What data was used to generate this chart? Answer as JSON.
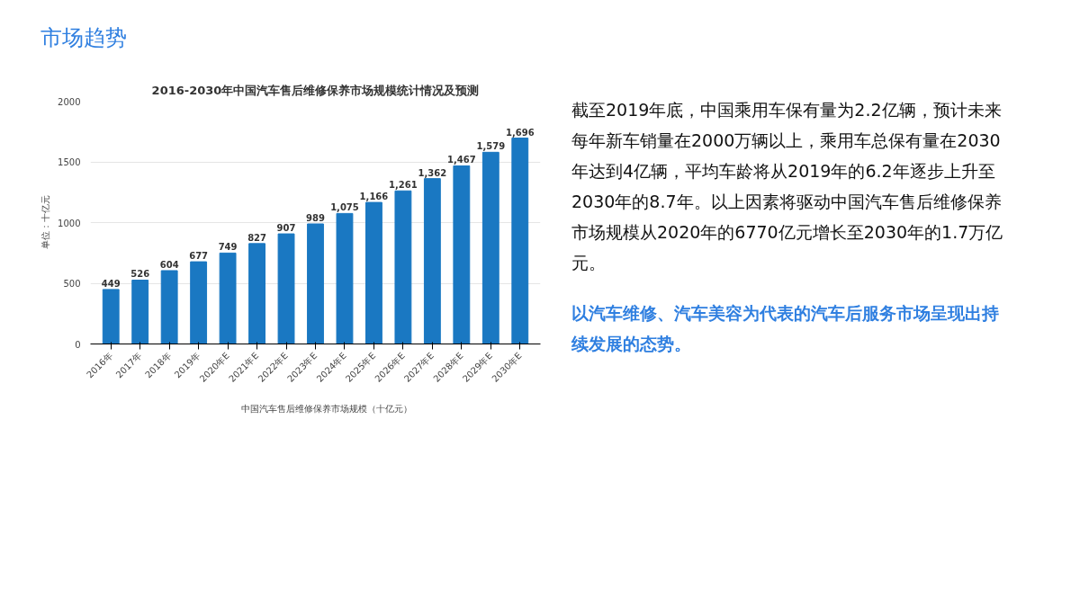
{
  "chart_data": {
    "type": "bar",
    "title": "2016-2030年中国汽车售后维修保养市场规模统计情况及预测",
    "ylabel": "单位：十亿元",
    "categories": [
      "2016年",
      "2017年",
      "2018年",
      "2019年",
      "2020年E",
      "2021年E",
      "2022年E",
      "2023年E",
      "2024年E",
      "2025年E",
      "2026年E",
      "2027年E",
      "2028年E",
      "2029年E",
      "2030年E"
    ],
    "series": [
      {
        "name": "中国汽车售后维修保养市场规模（十亿元）",
        "color": "#1a78c2",
        "values": [
          449,
          526,
          604,
          677,
          749,
          827,
          907,
          989,
          1075,
          1166,
          1261,
          1362,
          1467,
          1579,
          1696
        ],
        "value_labels": [
          "449",
          "526",
          "604",
          "677",
          "749",
          "827",
          "907",
          "989",
          "1,075",
          "1,166",
          "1,261",
          "1,362",
          "1,467",
          "1,579",
          "1,696"
        ]
      }
    ],
    "ylim": [
      0,
      2000
    ],
    "yticks": [
      0,
      500,
      1000,
      1500,
      2000
    ],
    "grid": "y",
    "legend": "bottom",
    "annotations": [
      "市场趋势",
      "截至2019年底，中国乘用车保有量为2.2亿辆，预计未来每年新车销量在2000万辆以上，乘用车总保有量在2030年达到4亿辆，平均车龄将从2019年的6.2年逐步上升至2030年的8.7年。以上因素将驱动中国汽车售后维修保养市场规模从2020年的6770亿元增长至2030年的1.7万亿元。",
      "以汽车维修、汽车美容为代表的汽车后服务市场呈现出持续发展的态势。"
    ]
  }
}
